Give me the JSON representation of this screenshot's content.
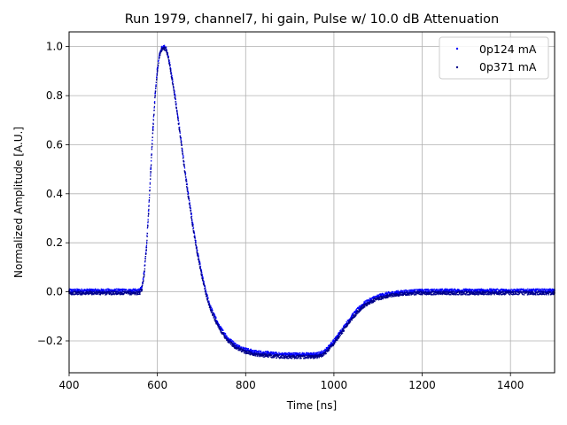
{
  "chart_data": {
    "type": "scatter",
    "title": "Run 1979, channel7, hi gain, Pulse w/ 10.0 dB Attenuation",
    "xlabel": "Time [ns]",
    "ylabel": "Normalized Amplitude [A.U.]",
    "xlim": [
      400,
      1500
    ],
    "ylim": [
      -0.33,
      1.06
    ],
    "xticks": [
      400,
      600,
      800,
      1000,
      1200,
      1400
    ],
    "yticks": [
      -0.2,
      0.0,
      0.2,
      0.4,
      0.6,
      0.8,
      1.0
    ],
    "ytick_labels": [
      "−0.2",
      "0.0",
      "0.2",
      "0.4",
      "0.6",
      "0.8",
      "1.0"
    ],
    "grid": true,
    "legend_position": "top-right",
    "series": [
      {
        "name": "0p124 mA",
        "color": "#0000ff",
        "x": [
          400,
          450,
          500,
          540,
          560,
          565,
          570,
          575,
          580,
          585,
          590,
          595,
          600,
          605,
          610,
          615,
          620,
          625,
          630,
          640,
          650,
          660,
          670,
          680,
          690,
          700,
          710,
          720,
          740,
          760,
          780,
          800,
          820,
          850,
          880,
          900,
          920,
          940,
          950,
          960,
          970,
          980,
          990,
          1000,
          1010,
          1020,
          1030,
          1040,
          1050,
          1060,
          1070,
          1080,
          1090,
          1100,
          1120,
          1140,
          1160,
          1180,
          1200,
          1250,
          1300,
          1350,
          1400,
          1450,
          1500
        ],
        "y": [
          0.005,
          0.005,
          0.005,
          0.005,
          0.005,
          0.02,
          0.08,
          0.18,
          0.33,
          0.5,
          0.67,
          0.81,
          0.91,
          0.97,
          0.995,
          1.0,
          0.99,
          0.96,
          0.91,
          0.8,
          0.67,
          0.53,
          0.4,
          0.28,
          0.17,
          0.08,
          0.0,
          -0.06,
          -0.14,
          -0.19,
          -0.22,
          -0.235,
          -0.245,
          -0.25,
          -0.255,
          -0.255,
          -0.255,
          -0.255,
          -0.255,
          -0.255,
          -0.25,
          -0.24,
          -0.22,
          -0.2,
          -0.175,
          -0.15,
          -0.125,
          -0.1,
          -0.08,
          -0.06,
          -0.045,
          -0.035,
          -0.025,
          -0.018,
          -0.008,
          -0.003,
          0.0,
          0.003,
          0.004,
          0.005,
          0.005,
          0.005,
          0.005,
          0.005,
          0.005
        ]
      },
      {
        "name": "0p371 mA",
        "color": "#00008b",
        "x": [
          400,
          450,
          500,
          540,
          560,
          565,
          570,
          575,
          580,
          585,
          590,
          595,
          600,
          605,
          610,
          615,
          620,
          625,
          630,
          640,
          650,
          660,
          670,
          680,
          690,
          700,
          710,
          720,
          740,
          760,
          780,
          800,
          820,
          850,
          880,
          900,
          920,
          940,
          950,
          960,
          970,
          980,
          990,
          1000,
          1010,
          1020,
          1030,
          1040,
          1050,
          1060,
          1070,
          1080,
          1090,
          1100,
          1120,
          1140,
          1160,
          1180,
          1200,
          1250,
          1300,
          1350,
          1400,
          1450,
          1500
        ],
        "y": [
          -0.005,
          -0.005,
          -0.005,
          -0.005,
          -0.005,
          0.01,
          0.07,
          0.17,
          0.32,
          0.49,
          0.66,
          0.8,
          0.9,
          0.965,
          0.99,
          0.995,
          0.985,
          0.955,
          0.9,
          0.79,
          0.66,
          0.52,
          0.39,
          0.27,
          0.16,
          0.07,
          -0.01,
          -0.07,
          -0.15,
          -0.2,
          -0.23,
          -0.245,
          -0.255,
          -0.26,
          -0.265,
          -0.265,
          -0.265,
          -0.265,
          -0.265,
          -0.265,
          -0.26,
          -0.25,
          -0.23,
          -0.21,
          -0.185,
          -0.16,
          -0.135,
          -0.11,
          -0.09,
          -0.07,
          -0.055,
          -0.045,
          -0.035,
          -0.028,
          -0.018,
          -0.012,
          -0.008,
          -0.006,
          -0.005,
          -0.005,
          -0.005,
          -0.005,
          -0.005,
          -0.005,
          -0.005
        ]
      }
    ]
  }
}
